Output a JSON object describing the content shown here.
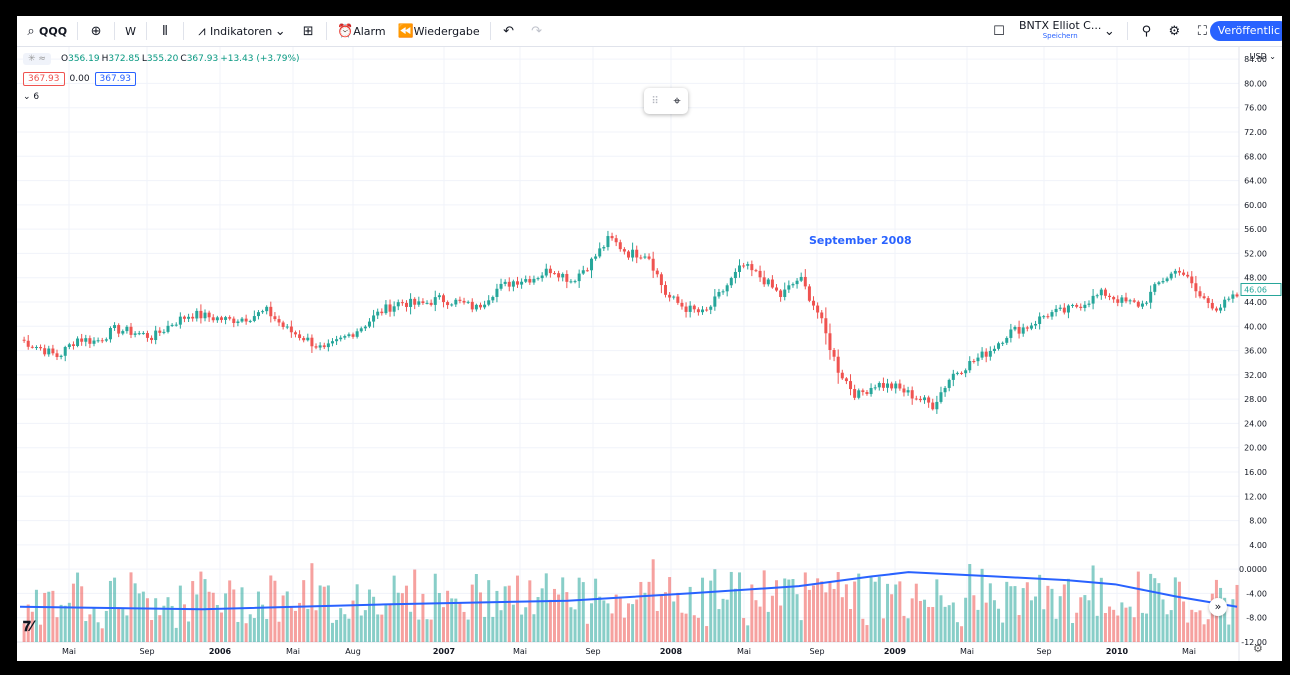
{
  "toolbar": {
    "symbol": "QQQ",
    "interval": "W",
    "indicators": "Indikatoren",
    "alert": "Alarm",
    "replay": "Wiedergabe",
    "layout_name": "BNTX Elliot C...",
    "layout_sub": "Speichern",
    "publish": "Veröffentlic"
  },
  "legend": {
    "open_k": "O",
    "open": "356.19",
    "high_k": "H",
    "high": "372.85",
    "low_k": "L",
    "low": "355.20",
    "close_k": "C",
    "close": "367.93",
    "change": "+13.43 (+3.79%)",
    "sell": "367.93",
    "spread": "0.00",
    "buy": "367.93",
    "hidden_count": "6"
  },
  "annotation": "September 2008",
  "price_axis": {
    "currency": "USD",
    "last_price": "46.06"
  },
  "colors": {
    "up": "#26a69a",
    "down": "#ef5350",
    "accent": "#2962ff",
    "ma": "#2962ff"
  },
  "chart_data": {
    "type": "candlestick",
    "interval": "weekly",
    "y_ticks": [
      "84.00",
      "80.00",
      "76.00",
      "72.00",
      "68.00",
      "64.00",
      "60.00",
      "56.00",
      "52.00",
      "48.00",
      "44.00",
      "40.00",
      "36.00",
      "32.00",
      "28.00",
      "24.00",
      "20.00",
      "16.00",
      "12.00",
      "8.00",
      "4.00",
      "0.0000",
      "-4.00",
      "-8.00",
      "-12.00"
    ],
    "x_ticks": [
      "Mai",
      "Sep",
      "2006",
      "Mai",
      "Aug",
      "2007",
      "Mai",
      "Sep",
      "2008",
      "Mai",
      "Sep",
      "2009",
      "Mai",
      "Sep",
      "2010",
      "Mai"
    ],
    "ylim": [
      -12,
      86
    ],
    "price_path": [
      [
        "2005-03",
        37.8
      ],
      [
        "2005-04",
        36.5
      ],
      [
        "2005-05",
        35.0
      ],
      [
        "2005-06",
        38.0
      ],
      [
        "2005-07",
        37.5
      ],
      [
        "2005-08",
        39.5
      ],
      [
        "2005-09",
        39.0
      ],
      [
        "2005-10",
        38.2
      ],
      [
        "2005-11",
        40.5
      ],
      [
        "2005-12",
        42.0
      ],
      [
        "2006-01",
        41.5
      ],
      [
        "2006-02",
        41.0
      ],
      [
        "2006-03",
        41.5
      ],
      [
        "2006-04",
        42.5
      ],
      [
        "2006-05",
        39.5
      ],
      [
        "2006-06",
        38.0
      ],
      [
        "2006-07",
        36.0
      ],
      [
        "2006-08",
        38.0
      ],
      [
        "2006-09",
        40.0
      ],
      [
        "2006-10",
        42.5
      ],
      [
        "2006-11",
        44.0
      ],
      [
        "2006-12",
        43.5
      ],
      [
        "2007-01",
        44.5
      ],
      [
        "2007-02",
        44.0
      ],
      [
        "2007-03",
        43.0
      ],
      [
        "2007-04",
        46.0
      ],
      [
        "2007-05",
        47.5
      ],
      [
        "2007-06",
        48.0
      ],
      [
        "2007-07",
        49.5
      ],
      [
        "2007-08",
        47.5
      ],
      [
        "2007-09",
        50.5
      ],
      [
        "2007-10",
        54.5
      ],
      [
        "2007-11",
        52.0
      ],
      [
        "2007-12",
        52.0
      ],
      [
        "2008-01",
        45.0
      ],
      [
        "2008-02",
        43.0
      ],
      [
        "2008-03",
        42.0
      ],
      [
        "2008-04",
        46.0
      ],
      [
        "2008-05",
        50.0
      ],
      [
        "2008-06",
        48.0
      ],
      [
        "2008-07",
        45.0
      ],
      [
        "2008-08",
        48.0
      ],
      [
        "2008-09",
        42.0
      ],
      [
        "2008-10",
        33.0
      ],
      [
        "2008-11",
        28.5
      ],
      [
        "2008-12",
        30.5
      ],
      [
        "2009-01",
        30.0
      ],
      [
        "2009-02",
        28.5
      ],
      [
        "2009-03",
        27.0
      ],
      [
        "2009-04",
        32.0
      ],
      [
        "2009-05",
        34.0
      ],
      [
        "2009-06",
        36.0
      ],
      [
        "2009-07",
        39.0
      ],
      [
        "2009-08",
        40.0
      ],
      [
        "2009-09",
        42.0
      ],
      [
        "2009-10",
        42.5
      ],
      [
        "2009-11",
        44.0
      ],
      [
        "2009-12",
        45.5
      ],
      [
        "2010-01",
        44.0
      ],
      [
        "2010-02",
        43.5
      ],
      [
        "2010-03",
        47.5
      ],
      [
        "2010-04",
        49.5
      ],
      [
        "2010-05",
        45.0
      ],
      [
        "2010-06",
        43.0
      ],
      [
        "2010-07",
        45.0
      ]
    ],
    "indicator": {
      "name": "volume-like histogram with moving average",
      "range": [
        -12,
        13
      ]
    }
  }
}
